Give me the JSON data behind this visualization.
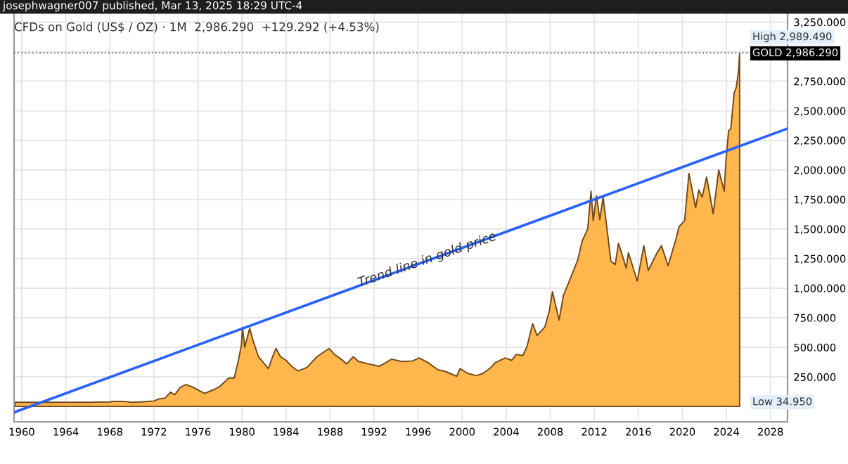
{
  "chart_data": {
    "type": "area",
    "title": "CFDs on Gold (US$ / OZ) · 1M  2,986.290  +129.292 (+4.53%)",
    "annotations": [
      "josephwagner007 published, Mar 13, 2025 18:29 UTC-4",
      {
        "text": "Trend line in gold price",
        "x": 1997,
        "y": 1190
      },
      "GOLD 2,986.290",
      "Low 34.950"
    ],
    "series": [
      {
        "color": "#ffb74d",
        "x": [
          1959.4,
          1962,
          1966,
          1968,
          1968.3,
          1969.2,
          1970,
          1971,
          1972,
          1972.5,
          1973,
          1973.5,
          1973.9,
          1974.4,
          1974.9,
          1975.5,
          1976.6,
          1977.5,
          1978,
          1978.8,
          1979.3,
          1979.7,
          1979.95,
          1980.05,
          1980.25,
          1980.7,
          1981,
          1981.5,
          1982.4,
          1982.9,
          1983.1,
          1983.5,
          1984,
          1984.5,
          1985.1,
          1985.9,
          1986.8,
          1987.9,
          1988.4,
          1989,
          1989.5,
          1990.1,
          1990.6,
          1991.5,
          1992.5,
          1993.6,
          1994.5,
          1995.5,
          1996.1,
          1996.9,
          1997.8,
          1998.5,
          1999.5,
          1999.8,
          2000.5,
          2001.3,
          2001.9,
          2002.5,
          2003,
          2003.9,
          2004.5,
          2004.9,
          2005.5,
          2005.9,
          2006.4,
          2006.8,
          2007.5,
          2007.9,
          2008.2,
          2008.8,
          2009.2,
          2009.9,
          2010.5,
          2010.9,
          2011.4,
          2011.7,
          2011.9,
          2012.2,
          2012.5,
          2012.8,
          2013.3,
          2013.5,
          2013.9,
          2014.2,
          2014.9,
          2015.1,
          2015.9,
          2016.5,
          2016.9,
          2017.7,
          2018.1,
          2018.7,
          2019.4,
          2019.7,
          2020.2,
          2020.6,
          2021.2,
          2021.5,
          2021.8,
          2022.2,
          2022.8,
          2023.3,
          2023.8,
          2023.95,
          2024.2,
          2024.4,
          2024.7,
          2024.9,
          2025.1,
          2025.2
        ],
        "values": [
          35,
          35,
          35,
          38,
          42,
          43,
          35,
          40,
          46,
          65,
          70,
          120,
          100,
          160,
          185,
          165,
          110,
          145,
          170,
          240,
          240,
          400,
          520,
          670,
          500,
          660,
          560,
          420,
          320,
          450,
          490,
          420,
          390,
          340,
          300,
          330,
          420,
          490,
          440,
          400,
          360,
          420,
          380,
          360,
          340,
          400,
          380,
          385,
          410,
          370,
          310,
          295,
          255,
          320,
          280,
          260,
          280,
          320,
          370,
          410,
          390,
          440,
          430,
          510,
          700,
          600,
          670,
          800,
          970,
          730,
          940,
          1100,
          1240,
          1400,
          1500,
          1820,
          1570,
          1780,
          1580,
          1770,
          1390,
          1230,
          1200,
          1380,
          1170,
          1300,
          1060,
          1360,
          1150,
          1300,
          1360,
          1190,
          1410,
          1520,
          1570,
          1970,
          1680,
          1830,
          1770,
          1940,
          1630,
          2000,
          1820,
          2070,
          2330,
          2350,
          2650,
          2700,
          2840,
          2986.29
        ]
      },
      {
        "type": "line",
        "color": "#2962ff",
        "x": [
          1959.3,
          2029.55
        ],
        "values": [
          -50,
          2350
        ]
      }
    ],
    "xlim": [
      1959.3,
      2029.55
    ],
    "xticks": [
      1960,
      1964,
      1968,
      1972,
      1976,
      1980,
      1984,
      1988,
      1992,
      1996,
      2000,
      2004,
      2008,
      2012,
      2016,
      2020,
      2024,
      2028
    ],
    "ylim": [
      -130,
      3330
    ],
    "yticks": [
      {
        "value": 250,
        "label": "250.000"
      },
      {
        "value": 500,
        "label": "500.000"
      },
      {
        "value": 750,
        "label": "750.000"
      },
      {
        "value": 1000,
        "label": "1,000.000"
      },
      {
        "value": 1250,
        "label": "1,250.000"
      },
      {
        "value": 1500,
        "label": "1,500.000"
      },
      {
        "value": 1750,
        "label": "1,750.000"
      },
      {
        "value": 2000,
        "label": "2,000.000"
      },
      {
        "value": 2250,
        "label": "2,250.000"
      },
      {
        "value": 2500,
        "label": "2,500.000"
      },
      {
        "value": 2750,
        "label": "2,750.000"
      },
      {
        "value": 3000,
        "label": null
      },
      {
        "value": 3250,
        "label": "3,250.000"
      }
    ],
    "grid": true,
    "ref_lines": [
      {
        "axis": "y",
        "value": 2989.49,
        "label": "High 2,989.490",
        "line_style": "dotted",
        "color": "#787b86"
      }
    ]
  }
}
